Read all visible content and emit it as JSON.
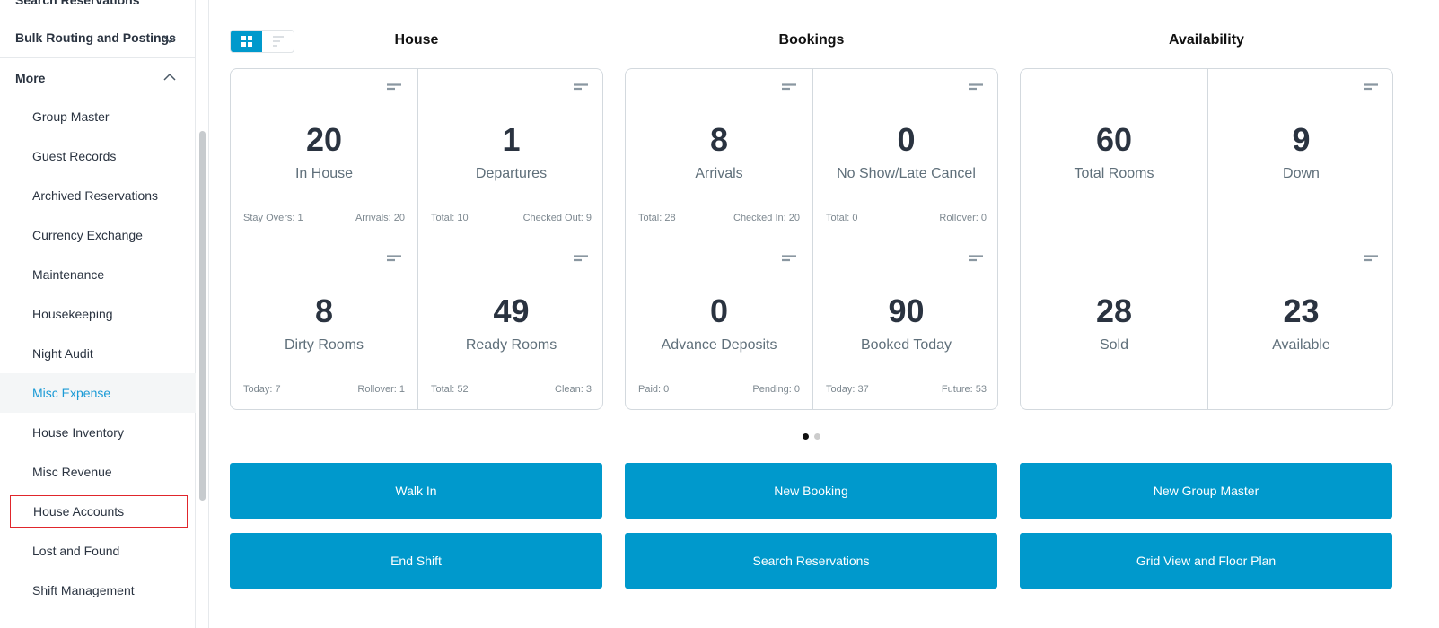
{
  "sidebar": {
    "top_item": "Search Reservations",
    "sections": [
      {
        "label": "Bulk Routing and Postings",
        "state": "collapsed"
      },
      {
        "label": "More",
        "state": "expanded"
      }
    ],
    "items": [
      {
        "label": "Group Master"
      },
      {
        "label": "Guest Records"
      },
      {
        "label": "Archived Reservations"
      },
      {
        "label": "Currency Exchange"
      },
      {
        "label": "Maintenance"
      },
      {
        "label": "Housekeeping"
      },
      {
        "label": "Night Audit"
      },
      {
        "label": "Misc Expense",
        "active": true
      },
      {
        "label": "House Inventory"
      },
      {
        "label": "Misc Revenue"
      },
      {
        "label": "House Accounts",
        "highlighted": true
      },
      {
        "label": "Lost and Found"
      },
      {
        "label": "Shift Management"
      }
    ]
  },
  "view_toggle": {
    "options": [
      "grid-view-icon",
      "list-view-icon"
    ],
    "selected": "grid-view-icon"
  },
  "sections": [
    {
      "title": "House",
      "cells": [
        {
          "value": "20",
          "label": "In House",
          "left": "Stay Overs: 1",
          "right": "Arrivals: 20"
        },
        {
          "value": "1",
          "label": "Departures",
          "left": "Total: 10",
          "right": "Checked Out: 9"
        },
        {
          "value": "8",
          "label": "Dirty Rooms",
          "left": "Today: 7",
          "right": "Rollover: 1"
        },
        {
          "value": "49",
          "label": "Ready Rooms",
          "left": "Total: 52",
          "right": "Clean: 3"
        }
      ]
    },
    {
      "title": "Bookings",
      "cells": [
        {
          "value": "8",
          "label": "Arrivals",
          "left": "Total: 28",
          "right": "Checked In: 20"
        },
        {
          "value": "0",
          "label": "No Show/Late Cancel",
          "left": "Total: 0",
          "right": "Rollover: 0"
        },
        {
          "value": "0",
          "label": "Advance Deposits",
          "left": "Paid: 0",
          "right": "Pending: 0"
        },
        {
          "value": "90",
          "label": "Booked Today",
          "left": "Today: 37",
          "right": "Future: 53"
        }
      ]
    },
    {
      "title": "Availability",
      "cells": [
        {
          "value": "60",
          "label": "Total Rooms",
          "left": "",
          "right": ""
        },
        {
          "value": "9",
          "label": "Down",
          "left": "",
          "right": ""
        },
        {
          "value": "28",
          "label": "Sold",
          "left": "",
          "right": ""
        },
        {
          "value": "23",
          "label": "Available",
          "left": "",
          "right": ""
        }
      ]
    }
  ],
  "pagination": {
    "pages": 2,
    "current": 1
  },
  "buttons": [
    "Walk In",
    "New Booking",
    "New Group Master",
    "End Shift",
    "Search Reservations",
    "Grid View and Floor Plan"
  ],
  "colors": {
    "accent": "#0099cc",
    "active_text": "#1a9ad6",
    "highlight_border": "#e0262c"
  }
}
